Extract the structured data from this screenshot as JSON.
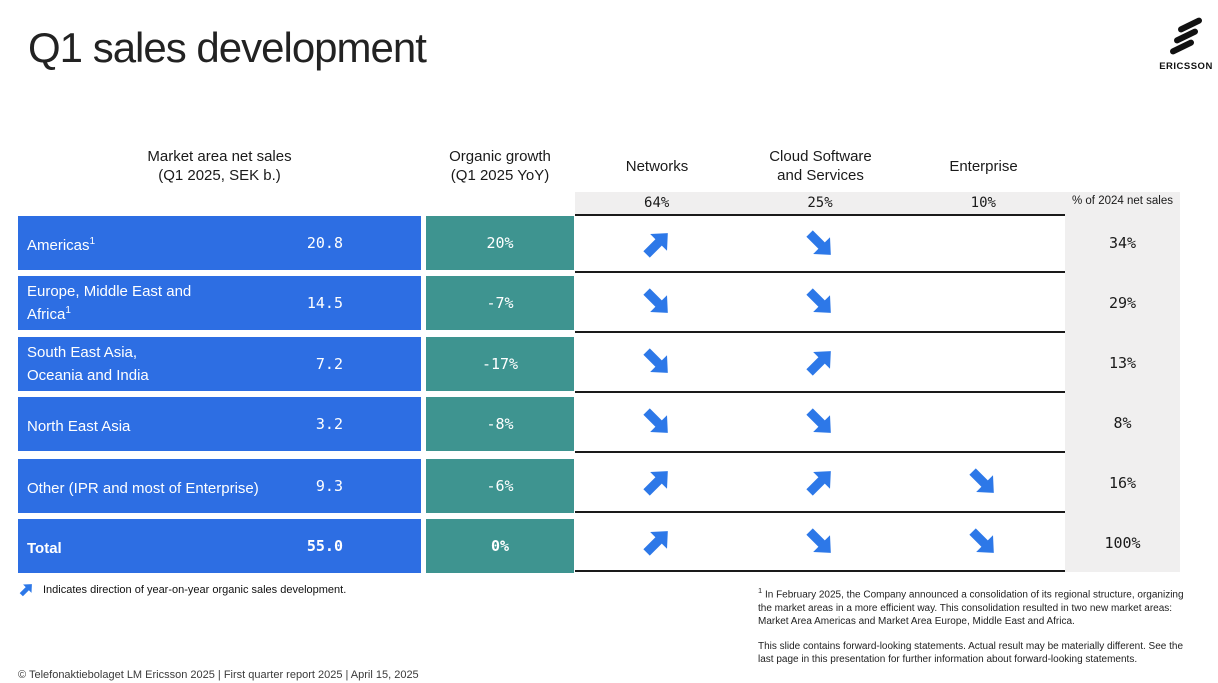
{
  "slide": {
    "title": "Q1 sales development",
    "brand": "ERICSSON"
  },
  "colors": {
    "cell_blue": "#2D6EE3",
    "cell_teal": "#3E9490",
    "arrow_blue": "#2D78E8",
    "band_gray": "#F0EFEF",
    "line_black": "#1a1a1a"
  },
  "table": {
    "headers": {
      "market_area": "Market area net sales\n(Q1 2025, SEK b.)",
      "organic_growth": "Organic growth\n(Q1 2025 YoY)",
      "networks": "Networks",
      "cloud": "Cloud Software\nand Services",
      "enterprise": "Enterprise",
      "share_label": "% of 2024 net sales"
    },
    "segment_shares": {
      "networks": "64%",
      "cloud": "25%",
      "enterprise": "10%"
    },
    "rows": [
      {
        "name": "Americas",
        "sup": "1",
        "net_sales": "20.8",
        "organic_growth": "20%",
        "arrows": {
          "networks": "up",
          "cloud": "down",
          "enterprise": null
        },
        "share_2024": "34%"
      },
      {
        "name": "Europe, Middle East and\nAfrica",
        "sup": "1",
        "net_sales": "14.5",
        "organic_growth": "-7%",
        "arrows": {
          "networks": "down",
          "cloud": "down",
          "enterprise": null
        },
        "share_2024": "29%"
      },
      {
        "name": "South East Asia,\nOceania and India",
        "net_sales": "7.2",
        "organic_growth": "-17%",
        "arrows": {
          "networks": "down",
          "cloud": "up",
          "enterprise": null
        },
        "share_2024": "13%"
      },
      {
        "name": "North East Asia",
        "net_sales": "3.2",
        "organic_growth": "-8%",
        "arrows": {
          "networks": "down",
          "cloud": "down",
          "enterprise": null
        },
        "share_2024": "8%"
      },
      {
        "name": "Other (IPR and most of Enterprise)",
        "net_sales": "9.3",
        "organic_growth": "-6%",
        "arrows": {
          "networks": "up",
          "cloud": "up",
          "enterprise": "down"
        },
        "share_2024": "16%"
      },
      {
        "name": "Total",
        "net_sales": "55.0",
        "organic_growth": "0%",
        "arrows": {
          "networks": "up",
          "cloud": "down",
          "enterprise": "down"
        },
        "share_2024": "100%"
      }
    ]
  },
  "legend": {
    "arrow": "up",
    "text": "Indicates direction of year-on-year organic sales development."
  },
  "footnotes": {
    "sup_mark": "1",
    "note1": " In February 2025, the Company announced a consolidation of its regional structure, organizing the market areas in a more efficient way. This consolidation resulted in two new market areas: Market Area Americas and Market Area Europe, Middle East and Africa.",
    "note2": "This slide contains forward-looking statements. Actual result may be materially different. See the last page in this presentation for further information about forward-looking statements."
  },
  "footer": {
    "copyright": "© Telefonaktiebolaget LM Ericsson 2025  | First quarter report 2025 | April 15, 2025"
  }
}
